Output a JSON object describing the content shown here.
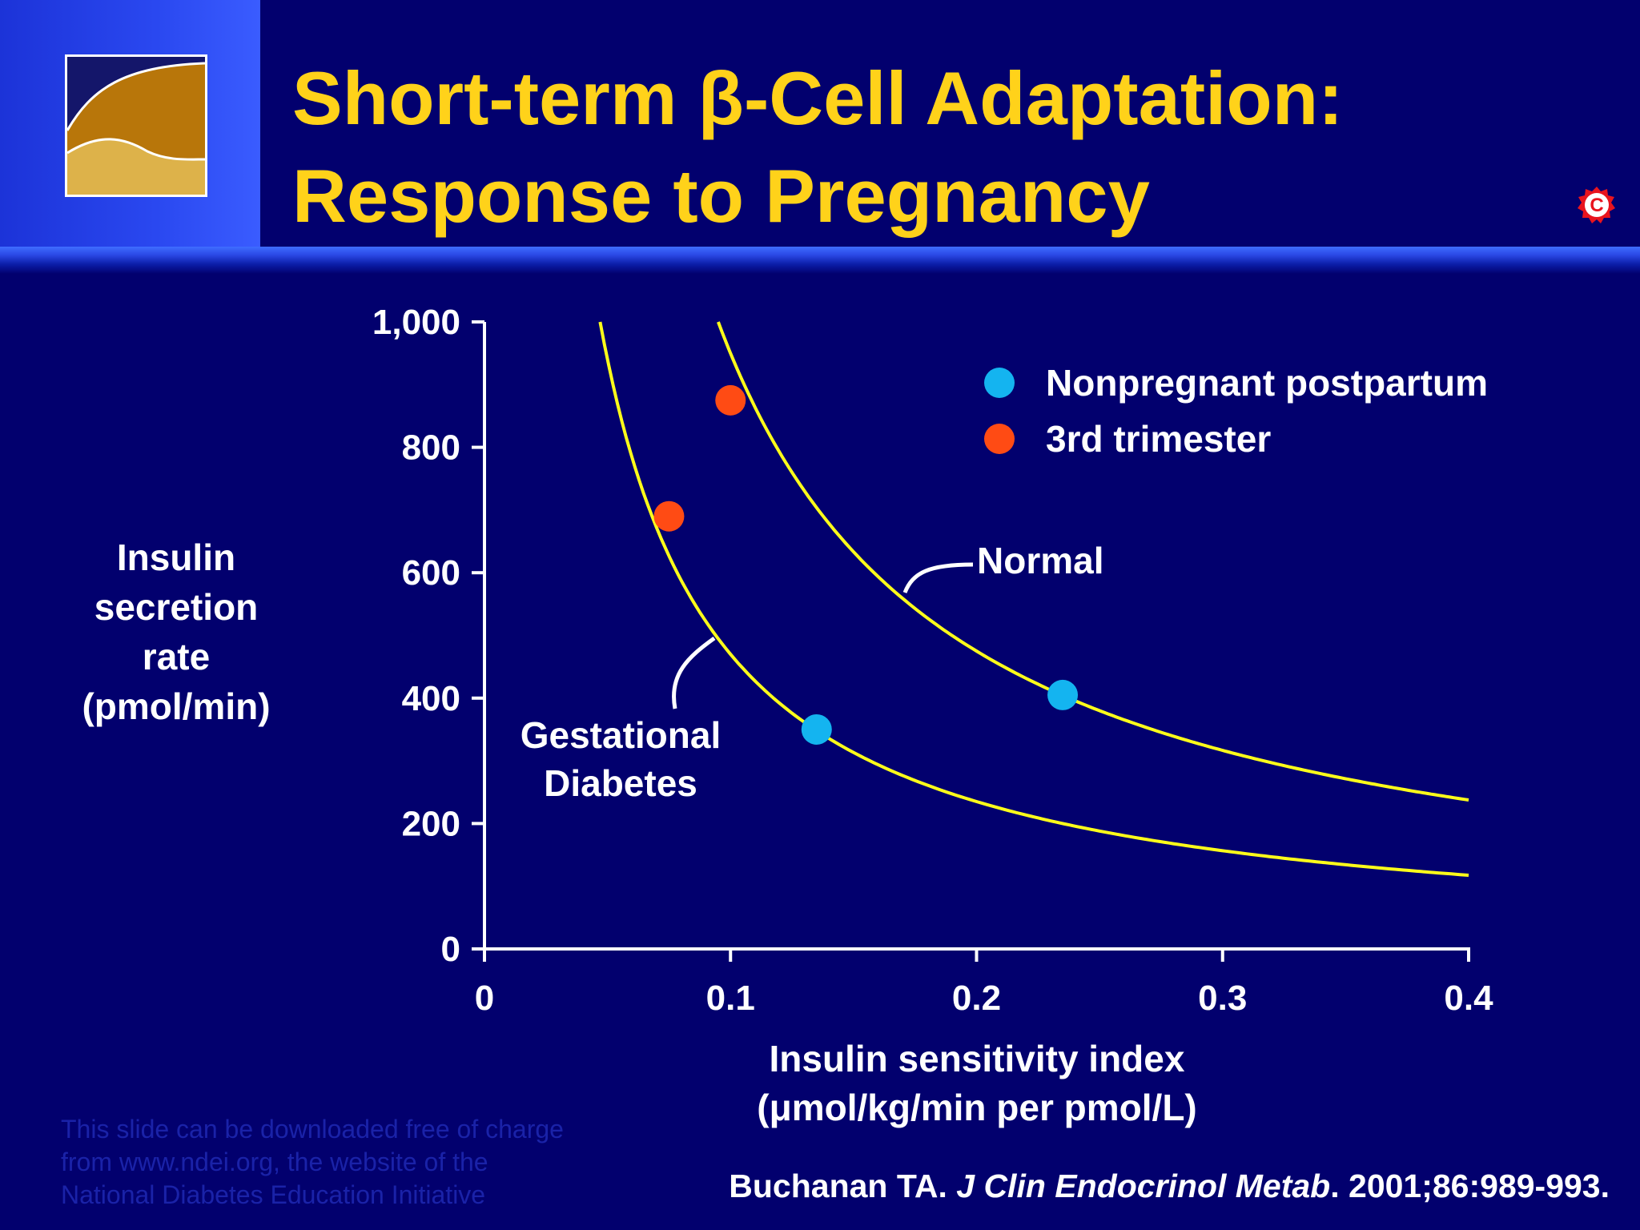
{
  "slide": {
    "title_line1": "Short-term β-Cell Adaptation:",
    "title_line2": "Response to Pregnancy",
    "copyright_icon": "copyright-c-icon",
    "logo_icon": "ndei-landscape-logo",
    "footer_note": {
      "line1": "This slide can be downloaded free of charge",
      "line2": "from www.ndei.org, the website of the",
      "line3": "National Diabetes Education Initiative"
    },
    "citation": {
      "author": "Buchanan TA. ",
      "journal": "J Clin Endocrinol Metab",
      "details": ". 2001;86:989-993."
    }
  },
  "chart_data": {
    "type": "scatter",
    "ylabel_lines": [
      "Insulin",
      "secretion",
      "rate",
      "(pmol/min)"
    ],
    "xlabel_lines": [
      "Insulin sensitivity index",
      "(μmol/kg/min per pmol/L)"
    ],
    "xlim": [
      0,
      0.4
    ],
    "ylim": [
      0,
      1000
    ],
    "x_ticks": [
      0,
      0.1,
      0.2,
      0.3,
      0.4
    ],
    "x_tick_labels": [
      "0",
      "0.1",
      "0.2",
      "0.3",
      "0.4"
    ],
    "y_ticks": [
      0,
      200,
      400,
      600,
      800,
      1000
    ],
    "y_tick_labels": [
      "0",
      "200",
      "400",
      "600",
      "800",
      "1,000"
    ],
    "grid": false,
    "legend_position": "top-right",
    "curves": [
      {
        "label": "Normal",
        "k": 95,
        "x_range": [
          0.095,
          0.4
        ],
        "color": "#ffff1a"
      },
      {
        "label_lines": [
          "Gestational",
          "Diabetes"
        ],
        "k": 47,
        "x_range": [
          0.047,
          0.4
        ],
        "color": "#ffff1a"
      }
    ],
    "series": [
      {
        "name": "Nonpregnant postpartum",
        "color": "#14b4f0",
        "points": [
          {
            "x": 0.135,
            "y": 350
          },
          {
            "x": 0.235,
            "y": 405
          }
        ]
      },
      {
        "name": "3rd trimester",
        "color": "#ff4b14",
        "points": [
          {
            "x": 0.075,
            "y": 690
          },
          {
            "x": 0.1,
            "y": 875
          }
        ]
      }
    ]
  }
}
